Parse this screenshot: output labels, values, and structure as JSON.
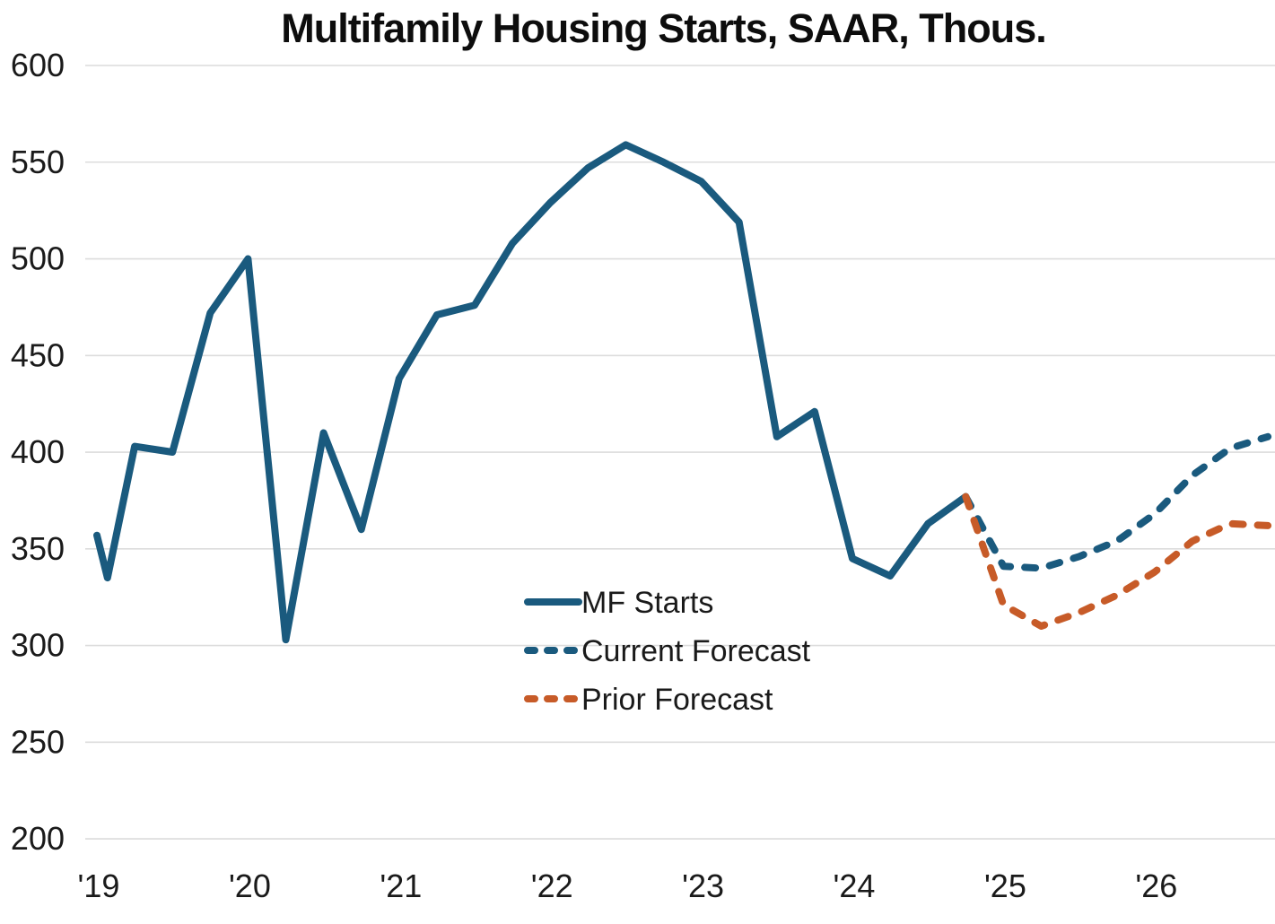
{
  "chart": {
    "title": "Multifamily Housing Starts, SAAR, Thous."
  },
  "chart_data": {
    "type": "line",
    "title": "Multifamily Housing Starts, SAAR, Thous.",
    "xlabel": "",
    "ylabel": "",
    "units": "Thousands of units, seasonally adjusted annual rate",
    "ylim": [
      200,
      600
    ],
    "y_ticks": [
      200,
      250,
      300,
      350,
      400,
      450,
      500,
      550,
      600
    ],
    "x_ticks": [
      {
        "label": "'19",
        "year": 2019
      },
      {
        "label": "'20",
        "year": 2020
      },
      {
        "label": "'21",
        "year": 2021
      },
      {
        "label": "'22",
        "year": 2022
      },
      {
        "label": "'23",
        "year": 2023
      },
      {
        "label": "'24",
        "year": 2024
      },
      {
        "label": "'25",
        "year": 2025
      },
      {
        "label": "'26",
        "year": 2026
      }
    ],
    "grid": {
      "horizontal": true,
      "vertical": false
    },
    "legend_position": "inside-center-left",
    "colors": {
      "blue": "#1A5A7E",
      "orange": "#C75B28",
      "gridline": "#DCDCDC",
      "axis_text": "#1A1A1A",
      "title_text": "#0D0D0D",
      "background": "#FFFFFF"
    },
    "series": [
      {
        "name": "MF Starts",
        "id": "mf-starts",
        "style": "solid",
        "color": "#1A5A7E",
        "points": [
          [
            2019.0,
            357
          ],
          [
            2019.07,
            335
          ],
          [
            2019.25,
            403
          ],
          [
            2019.5,
            400
          ],
          [
            2019.75,
            472
          ],
          [
            2020.0,
            500
          ],
          [
            2020.25,
            303
          ],
          [
            2020.5,
            410
          ],
          [
            2020.75,
            360
          ],
          [
            2021.0,
            438
          ],
          [
            2021.25,
            471
          ],
          [
            2021.5,
            476
          ],
          [
            2021.75,
            508
          ],
          [
            2022.0,
            529
          ],
          [
            2022.25,
            547
          ],
          [
            2022.5,
            559
          ],
          [
            2022.75,
            550
          ],
          [
            2023.0,
            540
          ],
          [
            2023.25,
            519
          ],
          [
            2023.5,
            408
          ],
          [
            2023.75,
            421
          ],
          [
            2024.0,
            345
          ],
          [
            2024.25,
            336
          ],
          [
            2024.5,
            363
          ],
          [
            2024.75,
            377
          ]
        ]
      },
      {
        "name": "Current Forecast",
        "id": "current-forecast",
        "style": "dashed",
        "color": "#1A5A7E",
        "points": [
          [
            2024.75,
            377
          ],
          [
            2025.0,
            341
          ],
          [
            2025.25,
            340
          ],
          [
            2025.5,
            346
          ],
          [
            2025.75,
            354
          ],
          [
            2026.0,
            368
          ],
          [
            2026.25,
            388
          ],
          [
            2026.5,
            402
          ],
          [
            2026.75,
            408
          ]
        ]
      },
      {
        "name": "Prior Forecast",
        "id": "prior-forecast",
        "style": "dashed",
        "color": "#C75B28",
        "points": [
          [
            2024.75,
            377
          ],
          [
            2025.0,
            321
          ],
          [
            2025.25,
            310
          ],
          [
            2025.5,
            317
          ],
          [
            2025.75,
            326
          ],
          [
            2026.0,
            338
          ],
          [
            2026.25,
            354
          ],
          [
            2026.5,
            363
          ],
          [
            2026.75,
            362
          ]
        ]
      }
    ]
  }
}
